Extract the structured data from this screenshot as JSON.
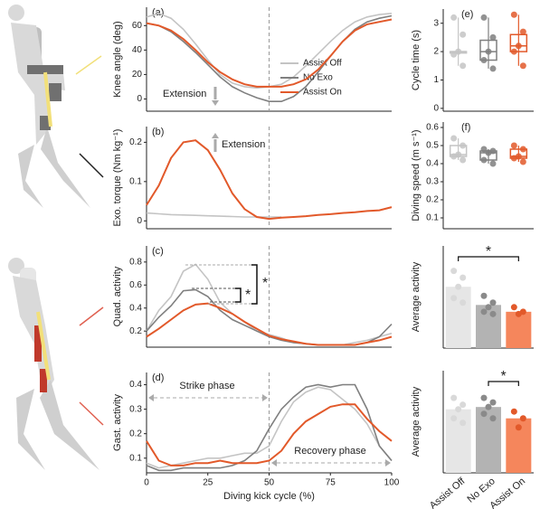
{
  "chart_data": [
    {
      "type": "line",
      "panel_label": "(a)",
      "ylabel": "Knee angle (deg)",
      "xlim": [
        0,
        100
      ],
      "ylim": [
        -10,
        75
      ],
      "yticks": [
        0,
        20,
        40,
        60
      ],
      "vline": 50,
      "legend": true,
      "x": [
        0,
        5,
        10,
        15,
        20,
        25,
        30,
        35,
        40,
        45,
        50,
        55,
        60,
        65,
        70,
        75,
        80,
        85,
        90,
        95,
        100
      ],
      "series": [
        {
          "name": "Assist Off",
          "color": "#c4c4c4",
          "values": [
            67,
            70,
            66,
            57,
            45,
            32,
            20,
            13,
            10,
            9,
            10,
            12,
            18,
            27,
            37,
            47,
            56,
            63,
            67,
            69,
            70
          ]
        },
        {
          "name": "No Exo",
          "color": "#7f7f7f",
          "values": [
            62,
            60,
            55,
            47,
            38,
            28,
            18,
            10,
            5,
            1,
            -2,
            -2,
            2,
            10,
            22,
            35,
            47,
            57,
            63,
            66,
            68
          ]
        },
        {
          "name": "Assist On",
          "color": "#e2592a",
          "values": [
            62,
            60,
            56,
            49,
            40,
            30,
            22,
            16,
            12,
            10,
            10,
            10,
            12,
            16,
            24,
            35,
            47,
            56,
            61,
            63,
            65
          ]
        }
      ],
      "annotations": [
        {
          "text": "Extension"
        }
      ]
    },
    {
      "type": "line",
      "panel_label": "(b)",
      "ylabel": "Exo. torque (Nm kg⁻¹)",
      "xlim": [
        0,
        100
      ],
      "ylim": [
        -0.02,
        0.24
      ],
      "yticks": [
        0,
        0.1,
        0.2
      ],
      "vline": 50,
      "x": [
        0,
        5,
        10,
        15,
        20,
        25,
        30,
        35,
        40,
        45,
        50,
        55,
        60,
        65,
        70,
        75,
        80,
        85,
        90,
        95,
        100
      ],
      "series": [
        {
          "color": "#c4c4c4",
          "values": [
            0.02,
            0.018,
            0.016,
            0.015,
            0.014,
            0.013,
            0.012,
            0.011,
            0.01,
            0.01,
            0.01,
            0.01,
            null,
            null,
            null,
            null,
            null,
            null,
            null,
            null,
            null
          ]
        },
        {
          "color": "#e2592a",
          "values": [
            0.04,
            0.09,
            0.16,
            0.2,
            0.205,
            0.18,
            0.13,
            0.07,
            0.03,
            0.01,
            0.005,
            0.008,
            0.01,
            0.012,
            0.015,
            0.017,
            0.02,
            0.022,
            0.025,
            0.027,
            0.035
          ]
        }
      ],
      "annotations": [
        {
          "text": "Extension"
        }
      ]
    },
    {
      "type": "line",
      "panel_label": "(c)",
      "ylabel": "Quad. activity",
      "xlim": [
        0,
        100
      ],
      "ylim": [
        0.06,
        0.94
      ],
      "yticks": [
        0.2,
        0.4,
        0.6,
        0.8
      ],
      "vline": 50,
      "x": [
        0,
        5,
        10,
        15,
        20,
        25,
        30,
        35,
        40,
        45,
        50,
        55,
        60,
        65,
        70,
        75,
        80,
        85,
        90,
        95,
        100
      ],
      "series": [
        {
          "color": "#c4c4c4",
          "values": [
            0.2,
            0.38,
            0.5,
            0.72,
            0.78,
            0.65,
            0.45,
            0.35,
            0.28,
            0.2,
            0.17,
            0.14,
            0.1,
            0.09,
            0.08,
            0.08,
            0.08,
            0.1,
            0.12,
            0.15,
            0.18
          ]
        },
        {
          "color": "#7f7f7f",
          "values": [
            0.2,
            0.32,
            0.42,
            0.55,
            0.56,
            0.5,
            0.38,
            0.3,
            0.25,
            0.2,
            0.15,
            0.12,
            0.1,
            0.09,
            0.08,
            0.08,
            0.08,
            0.08,
            0.1,
            0.15,
            0.26
          ]
        },
        {
          "color": "#e2592a",
          "values": [
            0.15,
            0.22,
            0.3,
            0.38,
            0.43,
            0.44,
            0.4,
            0.35,
            0.28,
            0.22,
            0.16,
            0.13,
            0.11,
            0.09,
            0.08,
            0.08,
            0.08,
            0.08,
            0.1,
            0.12,
            0.15
          ]
        }
      ],
      "annotations": [
        {
          "text": "*"
        },
        {
          "text": "*"
        }
      ]
    },
    {
      "type": "line",
      "panel_label": "(d)",
      "ylabel": "Gast. activity",
      "xlabel": "Diving kick cycle (%)",
      "xlim": [
        0,
        100
      ],
      "xticks": [
        0,
        25,
        50,
        75,
        100
      ],
      "ylim": [
        0.04,
        0.45
      ],
      "yticks": [
        0.1,
        0.2,
        0.3,
        0.4
      ],
      "vline": 50,
      "x": [
        0,
        5,
        10,
        15,
        20,
        25,
        30,
        35,
        40,
        45,
        50,
        55,
        60,
        65,
        70,
        75,
        80,
        85,
        90,
        95,
        100
      ],
      "series": [
        {
          "color": "#c4c4c4",
          "values": [
            0.08,
            0.06,
            0.07,
            0.08,
            0.09,
            0.1,
            0.1,
            0.11,
            0.12,
            0.12,
            0.15,
            0.25,
            0.33,
            0.37,
            0.39,
            0.38,
            0.34,
            0.3,
            0.24,
            0.15,
            0.09
          ]
        },
        {
          "color": "#7f7f7f",
          "values": [
            0.07,
            0.05,
            0.05,
            0.06,
            0.06,
            0.06,
            0.06,
            0.07,
            0.09,
            0.13,
            0.22,
            0.3,
            0.35,
            0.39,
            0.4,
            0.39,
            0.4,
            0.4,
            0.3,
            0.15,
            0.09
          ]
        },
        {
          "color": "#e2592a",
          "values": [
            0.17,
            0.09,
            0.07,
            0.07,
            0.08,
            0.08,
            0.09,
            0.08,
            0.08,
            0.08,
            0.09,
            0.13,
            0.2,
            0.25,
            0.28,
            0.31,
            0.32,
            0.32,
            0.26,
            0.21,
            0.17
          ]
        }
      ],
      "annotations": [
        {
          "text": "Strike phase"
        },
        {
          "text": "Recovery phase"
        }
      ]
    },
    {
      "type": "box",
      "panel_label": "(e)",
      "ylabel": "Cycle time (s)",
      "ylim": [
        -0.1,
        3.5
      ],
      "yticks": [
        0,
        1,
        2,
        3
      ],
      "boxes": [
        {
          "color": "#c4c4c4",
          "min": 1.5,
          "q1": 1.95,
          "median": 2.0,
          "q3": 2.0,
          "max": 3.2,
          "points": [
            3.2,
            2.6,
            2.0,
            1.9,
            1.5
          ]
        },
        {
          "color": "#7f7f7f",
          "min": 1.4,
          "q1": 1.7,
          "median": 2.0,
          "q3": 2.4,
          "max": 3.2,
          "points": [
            3.2,
            2.5,
            2.0,
            1.7,
            1.4
          ]
        },
        {
          "color": "#e2592a",
          "min": 1.5,
          "q1": 2.0,
          "median": 2.2,
          "q3": 2.6,
          "max": 3.3,
          "points": [
            3.3,
            2.7,
            2.2,
            2.0,
            1.5
          ]
        }
      ]
    },
    {
      "type": "box",
      "panel_label": "(f)",
      "ylabel": "Diving speed (m s⁻¹)",
      "ylim": [
        0.04,
        0.63
      ],
      "yticks": [
        0.1,
        0.2,
        0.3,
        0.4,
        0.5,
        0.6
      ],
      "boxes": [
        {
          "color": "#c4c4c4",
          "min": 0.42,
          "q1": 0.44,
          "median": 0.45,
          "q3": 0.5,
          "max": 0.54,
          "points": [
            0.54,
            0.5,
            0.45,
            0.44,
            0.42
          ]
        },
        {
          "color": "#7f7f7f",
          "min": 0.4,
          "q1": 0.42,
          "median": 0.46,
          "q3": 0.47,
          "max": 0.48,
          "points": [
            0.48,
            0.47,
            0.46,
            0.42,
            0.4
          ]
        },
        {
          "color": "#e2592a",
          "min": 0.41,
          "q1": 0.43,
          "median": 0.44,
          "q3": 0.48,
          "max": 0.5,
          "points": [
            0.5,
            0.48,
            0.44,
            0.43,
            0.41
          ]
        }
      ]
    },
    {
      "type": "dotbar",
      "ylabel": "Average activity",
      "ylim": [
        0,
        0.45
      ],
      "values": [
        0.27,
        0.19,
        0.16
      ],
      "colors": [
        "#e6e6e6",
        "#b3b3b3",
        "#f5865c"
      ],
      "point_colors": [
        "#d9d9d9",
        "#8a8a8a",
        "#e2592a"
      ],
      "points": [
        [
          0.34,
          0.31,
          0.27,
          0.22,
          0.2
        ],
        [
          0.23,
          0.2,
          0.18,
          0.16,
          0.15
        ],
        [
          0.18,
          0.16,
          0.15
        ]
      ],
      "annotations": [
        {
          "text": "*"
        }
      ]
    },
    {
      "type": "dotbar",
      "ylabel": "Average activity",
      "ylim": [
        0,
        0.45
      ],
      "values": [
        0.28,
        0.29,
        0.24
      ],
      "colors": [
        "#e6e6e6",
        "#b3b3b3",
        "#f5865c"
      ],
      "point_colors": [
        "#d9d9d9",
        "#8a8a8a",
        "#e2592a"
      ],
      "points": [
        [
          0.33,
          0.3,
          0.28,
          0.24,
          0.22
        ],
        [
          0.33,
          0.31,
          0.29,
          0.26,
          0.24
        ],
        [
          0.27,
          0.24,
          0.2
        ]
      ],
      "categories": [
        "Assist Off",
        "No Exo",
        "Assist On"
      ],
      "annotations": [
        {
          "text": "*"
        }
      ]
    }
  ]
}
